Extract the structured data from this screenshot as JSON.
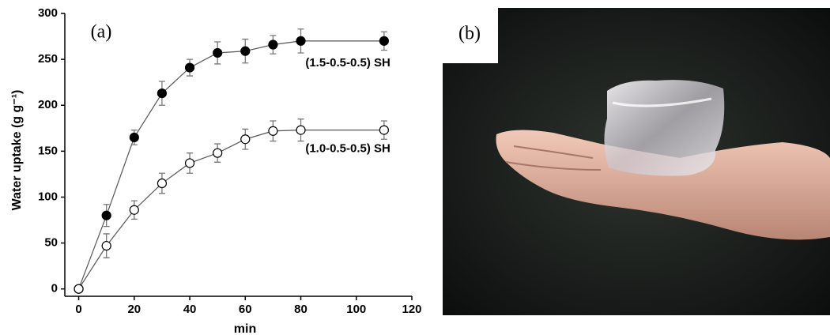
{
  "chart_data": {
    "type": "line",
    "panel_label": "(a)",
    "x_label": "min",
    "y_label": "Water uptake (g g⁻¹)",
    "x": [
      0,
      10,
      20,
      30,
      40,
      50,
      60,
      70,
      80,
      110
    ],
    "series": [
      {
        "name": "(1.5-0.5-0.5) SH",
        "color": "#000000",
        "filled": true,
        "values": [
          0,
          80,
          165,
          213,
          241,
          257,
          259,
          266,
          270,
          270
        ],
        "errors": [
          0,
          12,
          8,
          13,
          9,
          12,
          13,
          10,
          13,
          10
        ]
      },
      {
        "name": "(1.0-0.5-0.5) SH",
        "color": "#000000",
        "filled": false,
        "values": [
          0,
          47,
          86,
          115,
          137,
          148,
          163,
          172,
          173,
          173
        ],
        "errors": [
          0,
          13,
          10,
          11,
          11,
          10,
          11,
          11,
          12,
          10
        ]
      }
    ],
    "xlim": [
      -5,
      120
    ],
    "xticks": [
      0,
      20,
      40,
      60,
      80,
      100,
      120
    ],
    "ylim": [
      -8,
      300
    ],
    "yticks": [
      0,
      50,
      100,
      150,
      200,
      250,
      300
    ],
    "grid": false
  },
  "photo": {
    "panel_label": "(b)"
  }
}
